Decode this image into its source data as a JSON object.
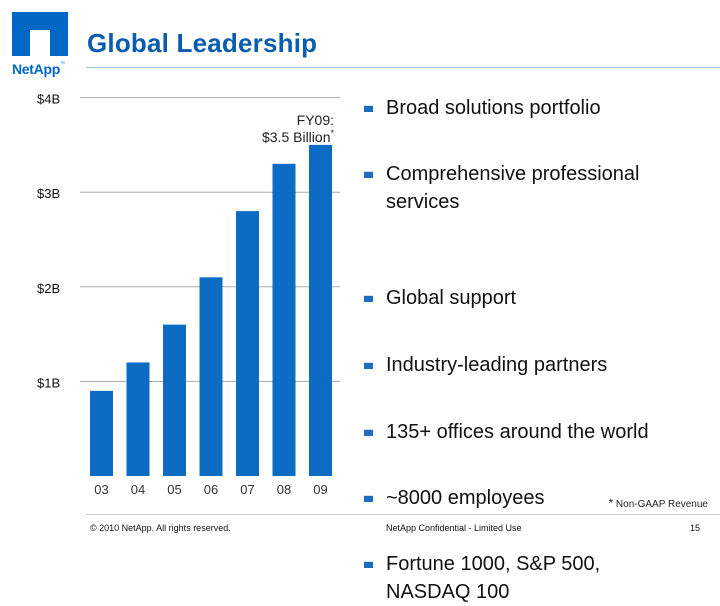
{
  "brand": {
    "name": "NetApp",
    "trademark": "™",
    "color": "#0067c5"
  },
  "slide": {
    "title": "Global Leadership",
    "title_color": "#0a5cae"
  },
  "chart_data": {
    "type": "bar",
    "categories": [
      "03",
      "04",
      "05",
      "06",
      "07",
      "08",
      "09"
    ],
    "values": [
      0.9,
      1.2,
      1.6,
      2.1,
      2.8,
      3.3,
      3.5
    ],
    "y_ticks": [
      {
        "value": 1,
        "label": "$1B"
      },
      {
        "value": 2,
        "label": "$2B"
      },
      {
        "value": 3,
        "label": "$3B"
      },
      {
        "value": 4,
        "label": "$4B"
      }
    ],
    "ylim": [
      0,
      4
    ],
    "grid": true,
    "bar_color": "#0c6cc4",
    "annotation": {
      "line1": "FY09:",
      "line2": "$3.5 Billion",
      "marker": "*"
    },
    "unit": "Billion USD"
  },
  "bullets": [
    "Broad solutions portfolio",
    "Comprehensive professional services",
    "Global support",
    "Industry-leading partners",
    "135+ offices around the world",
    "~8000 employees",
    "Fortune 1000, S&P 500, NASDAQ 100"
  ],
  "footnote": {
    "star": "*",
    "text": "Non-GAAP Revenue"
  },
  "footer": {
    "copyright": "© 2010 NetApp.  All rights reserved.",
    "confidential": "NetApp Confidential - Limited Use",
    "page_number": "15"
  }
}
